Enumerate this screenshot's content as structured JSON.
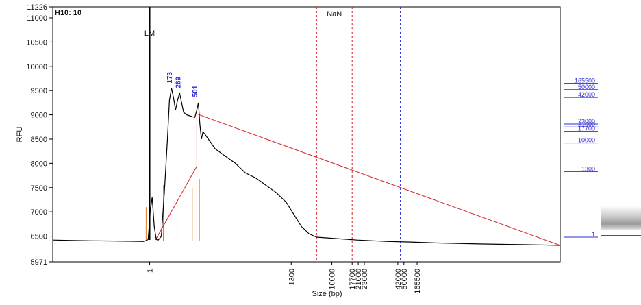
{
  "chart_data": {
    "type": "line",
    "title": "H10: 10",
    "ylabel": "RFU",
    "xlabel": "Size (bp)",
    "ylim": [
      5971,
      11226
    ],
    "yticks": [
      5971,
      6500,
      7000,
      7500,
      8000,
      8500,
      9000,
      9500,
      10000,
      10500,
      11000,
      11226
    ],
    "xticks": [
      "1",
      "1300",
      "10000",
      "17700",
      "21000",
      "23000",
      "42000",
      "50000",
      "165500"
    ],
    "marker_labels": {
      "lm": "LM",
      "nan": "NaN"
    },
    "peak_labels": [
      "173",
      "289",
      "501"
    ],
    "ladder_labels": [
      "165500",
      "50000",
      "42000",
      "23000",
      "21000",
      "17700",
      "10000",
      "1300",
      "1"
    ],
    "colors": {
      "trace": "#000000",
      "marker": "#d62020",
      "ladder": "#2b2bd6",
      "peaks": "#e07a1a"
    },
    "trace": [
      [
        0,
        6420
      ],
      [
        4,
        6410
      ],
      [
        8,
        6405
      ],
      [
        12,
        6400
      ],
      [
        16,
        6395
      ],
      [
        18,
        6390
      ],
      [
        18.8,
        6430
      ],
      [
        19.2,
        7000
      ],
      [
        19.6,
        7300
      ],
      [
        20.0,
        6700
      ],
      [
        20.4,
        6430
      ],
      [
        20.8,
        6420
      ],
      [
        21.4,
        6500
      ],
      [
        22.0,
        7400
      ],
      [
        22.6,
        8500
      ],
      [
        23.0,
        9300
      ],
      [
        23.4,
        9550
      ],
      [
        23.8,
        9350
      ],
      [
        24.2,
        9100
      ],
      [
        24.6,
        9300
      ],
      [
        25.0,
        9450
      ],
      [
        25.4,
        9250
      ],
      [
        25.8,
        9050
      ],
      [
        26.4,
        9000
      ],
      [
        27.0,
        8980
      ],
      [
        27.6,
        8960
      ],
      [
        28.0,
        8950
      ],
      [
        28.4,
        9100
      ],
      [
        28.7,
        9250
      ],
      [
        29.0,
        8800
      ],
      [
        29.3,
        8500
      ],
      [
        29.6,
        8650
      ],
      [
        30.0,
        8600
      ],
      [
        31.0,
        8450
      ],
      [
        32.0,
        8300
      ],
      [
        34.0,
        8150
      ],
      [
        36.0,
        8000
      ],
      [
        38.0,
        7800
      ],
      [
        40.0,
        7700
      ],
      [
        42.0,
        7550
      ],
      [
        44.0,
        7400
      ],
      [
        46.0,
        7200
      ],
      [
        47.5,
        6950
      ],
      [
        49.0,
        6700
      ],
      [
        50.5,
        6550
      ],
      [
        52.0,
        6480
      ],
      [
        56.0,
        6450
      ],
      [
        60.0,
        6420
      ],
      [
        66.0,
        6390
      ],
      [
        70.0,
        6380
      ],
      [
        76.0,
        6360
      ],
      [
        84.0,
        6340
      ],
      [
        90.0,
        6330
      ],
      [
        96.0,
        6320
      ],
      [
        100.0,
        6310
      ]
    ],
    "ladder_line": [
      [
        20.3,
        6430
      ],
      [
        28.4,
        7940
      ],
      [
        28.4,
        9020
      ],
      [
        100,
        6310
      ]
    ],
    "lm_position": 19.1,
    "nan_lines": [
      52.0,
      59.0
    ],
    "ladder_lines": [
      68.5
    ],
    "peak_bars": [
      {
        "x": 18.4,
        "height": 700
      },
      {
        "x": 21.8,
        "height": 1150
      },
      {
        "x": 24.5,
        "height": 1150
      },
      {
        "x": 27.5,
        "height": 1100
      },
      {
        "x": 28.4,
        "height": 1280
      },
      {
        "x": 28.9,
        "height": 1280
      }
    ],
    "peak_label_positions": [
      {
        "label": "173",
        "x": 23.5,
        "y": 9650
      },
      {
        "label": "289",
        "x": 25.2,
        "y": 9550
      },
      {
        "label": "501",
        "x": 28.5,
        "y": 9370
      }
    ],
    "ladder_ticks": [
      {
        "label": "165500",
        "y": 9650
      },
      {
        "label": "50000",
        "y": 9520
      },
      {
        "label": "42000",
        "y": 9360
      },
      {
        "label": "23000",
        "y": 8810
      },
      {
        "label": "21000",
        "y": 8750
      },
      {
        "label": "17700",
        "y": 8660
      },
      {
        "label": "10000",
        "y": 8420
      },
      {
        "label": "1300",
        "y": 7830
      },
      {
        "label": "1",
        "y": 6480
      }
    ],
    "x_tick_positions": [
      {
        "label": "1",
        "x": 19.1
      },
      {
        "label": "1300",
        "x": 47.0
      },
      {
        "label": "10000",
        "x": 55.0
      },
      {
        "label": "17700",
        "x": 59.0
      },
      {
        "label": "21000",
        "x": 60.2
      },
      {
        "label": "23000",
        "x": 61.4
      },
      {
        "label": "42000",
        "x": 68.0
      },
      {
        "label": "50000",
        "x": 69.2
      },
      {
        "label": "165500",
        "x": 71.8
      }
    ]
  }
}
